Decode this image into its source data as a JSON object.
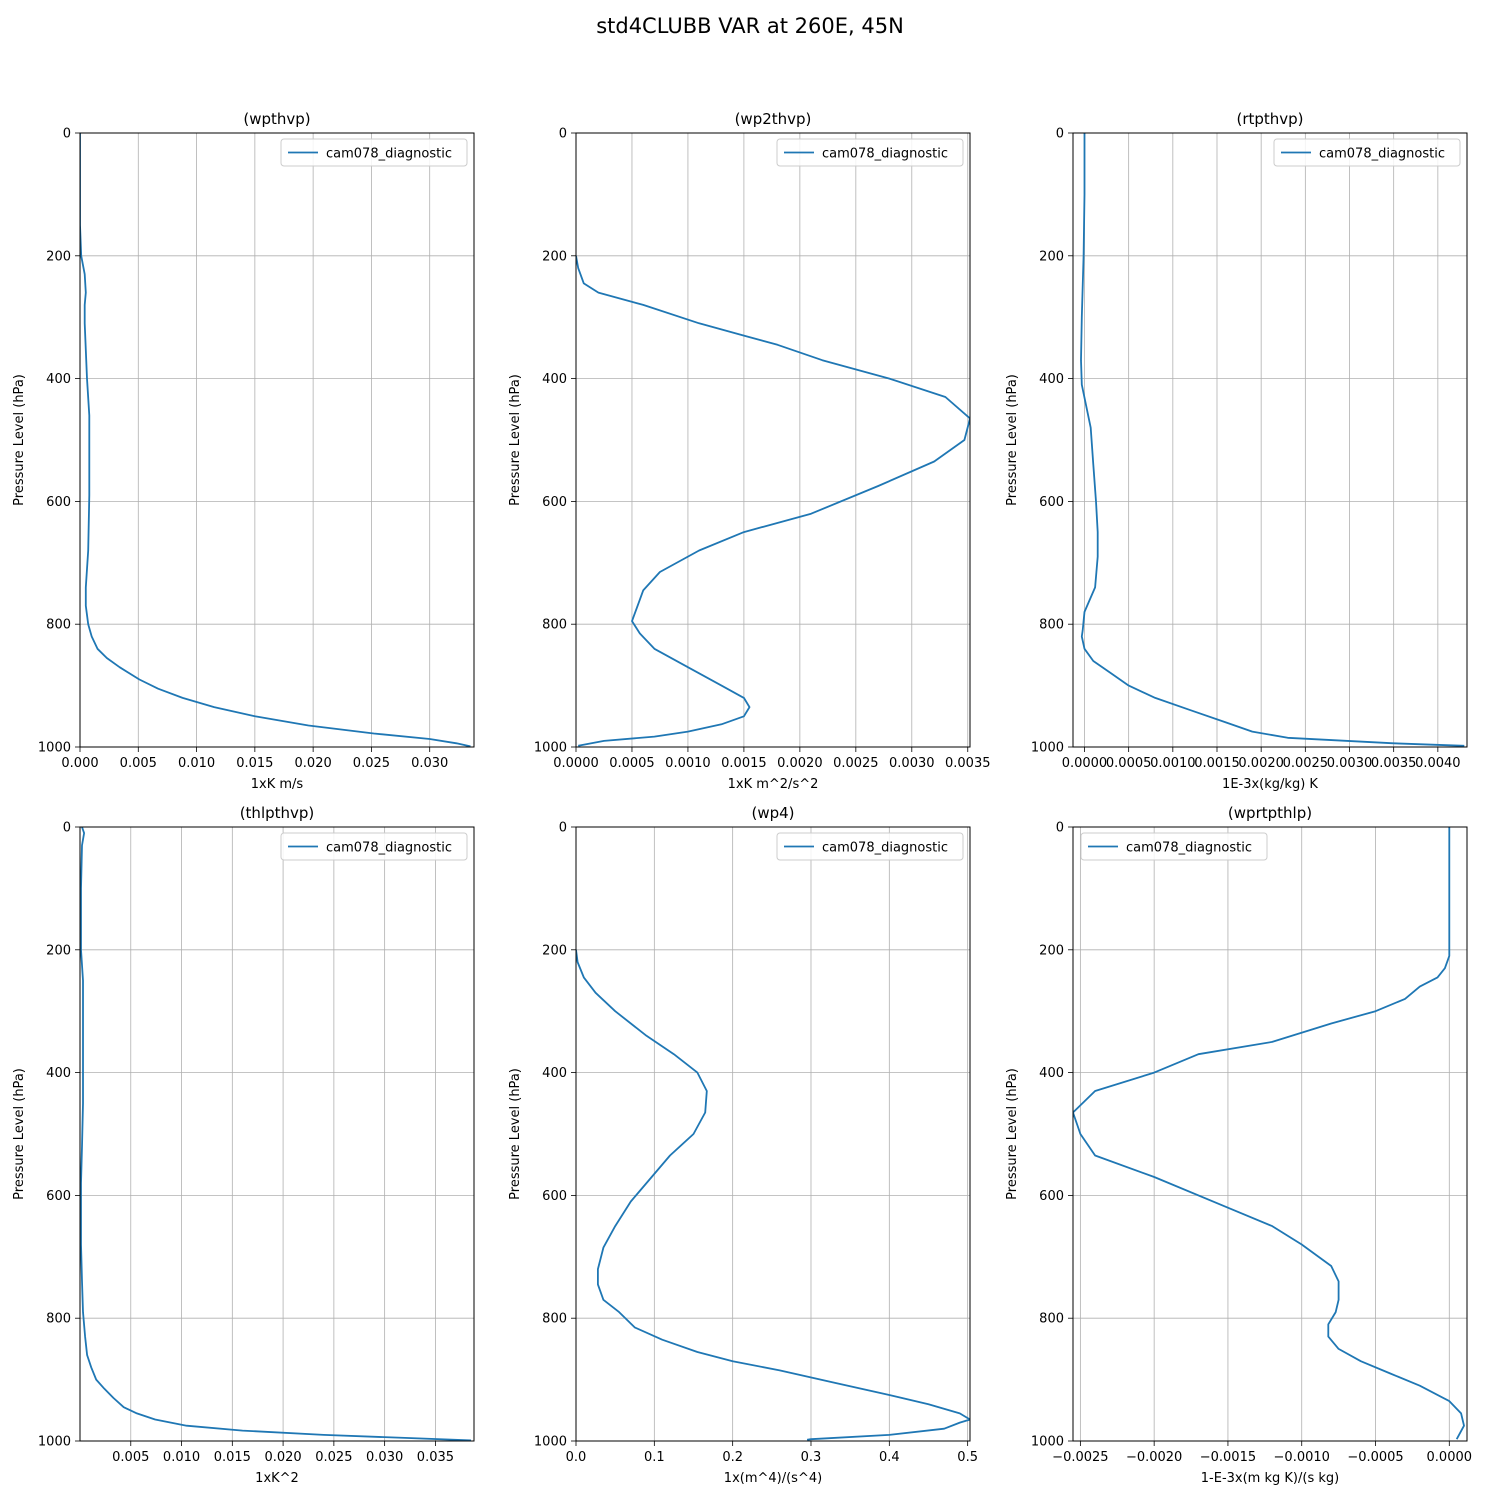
{
  "figure": {
    "suptitle": "std4CLUBB VAR at 260E, 45N"
  },
  "chart_data": [
    {
      "type": "line",
      "title": "(wpthvp)",
      "xlabel": "1xK m/s",
      "ylabel": "Pressure Level (hPa)",
      "xlim": [
        0,
        0.0338
      ],
      "ylim": [
        1000,
        0
      ],
      "xticks": [
        "0.000",
        "0.005",
        "0.010",
        "0.015",
        "0.020",
        "0.025",
        "0.030"
      ],
      "yticks": [
        "0",
        "200",
        "400",
        "600",
        "800",
        "1000"
      ],
      "legend_position": "upper-right",
      "grid": true,
      "series": [
        {
          "name": "cam078_diagnostic",
          "x": [
            0,
            0,
            0.0001,
            0.0004,
            0.0005,
            0.0004,
            0.0004,
            0.0006,
            0.0008,
            0.0008,
            0.0008,
            0.0007,
            0.0005,
            0.0005,
            0.0007,
            0.001,
            0.0015,
            0.0023,
            0.0034,
            0.0051,
            0.0067,
            0.0088,
            0.0115,
            0.015,
            0.0196,
            0.0252,
            0.03,
            0.0323,
            0.0335
          ],
          "y": [
            0,
            150,
            200,
            230,
            260,
            280,
            310,
            400,
            460,
            520,
            590,
            680,
            740,
            770,
            800,
            820,
            840,
            855,
            870,
            890,
            905,
            920,
            935,
            950,
            965,
            978,
            987,
            994,
            999
          ]
        }
      ]
    },
    {
      "type": "line",
      "title": "(wp2thvp)",
      "xlabel": "1xK m^2/s^2",
      "ylabel": "Pressure Level (hPa)",
      "xlim": [
        0,
        0.00352
      ],
      "ylim": [
        1000,
        0
      ],
      "xticks": [
        "0.0000",
        "0.0005",
        "0.0010",
        "0.0015",
        "0.0020",
        "0.0025",
        "0.0030",
        "0.0035"
      ],
      "yticks": [
        "0",
        "200",
        "400",
        "600",
        "800",
        "1000"
      ],
      "legend_position": "upper-right",
      "grid": true,
      "series": [
        {
          "name": "cam078_diagnostic",
          "x": [
            0,
            2e-05,
            7e-05,
            0.0002,
            0.0006,
            0.0011,
            0.0015,
            0.0018,
            0.0022,
            0.0028,
            0.0033,
            0.00352,
            0.00347,
            0.0032,
            0.0027,
            0.0021,
            0.0015,
            0.0011,
            0.00075,
            0.0006,
            0.00055,
            0.0005,
            0.00057,
            0.0007,
            0.001,
            0.0013,
            0.0015,
            0.00155,
            0.0015,
            0.0013,
            0.001,
            0.0007,
            0.00025,
            2e-05
          ],
          "y": [
            200,
            220,
            245,
            260,
            280,
            310,
            330,
            345,
            370,
            400,
            430,
            465,
            500,
            535,
            575,
            620,
            650,
            680,
            715,
            745,
            770,
            795,
            815,
            840,
            870,
            900,
            920,
            935,
            950,
            963,
            975,
            983,
            990,
            998
          ]
        }
      ]
    },
    {
      "type": "line",
      "title": "(rtpthvp)",
      "xlabel": "1E-3x(kg/kg) K",
      "ylabel": "Pressure Level (hPa)",
      "xlim": [
        -0.00013,
        0.00433
      ],
      "ylim": [
        1000,
        0
      ],
      "xticks": [
        "0.0000",
        "0.0005",
        "0.0010",
        "0.0015",
        "0.0020",
        "0.0025",
        "0.0030",
        "0.0035",
        "0.0040"
      ],
      "yticks": [
        "0",
        "200",
        "400",
        "600",
        "800",
        "1000"
      ],
      "legend_position": "upper-right",
      "grid": true,
      "series": [
        {
          "name": "cam078_diagnostic",
          "x": [
            0,
            0,
            -1e-05,
            -3e-05,
            -4e-05,
            -3e-05,
            7e-05,
            0.0001,
            0.00013,
            0.00015,
            0.00015,
            0.00012,
            0,
            -2e-05,
            -3e-05,
            0,
            0.0001,
            0.0003,
            0.0005,
            0.0008,
            0.0012,
            0.0016,
            0.0019,
            0.0023,
            0.0035,
            0.0043
          ],
          "y": [
            0,
            100,
            200,
            300,
            370,
            410,
            480,
            540,
            600,
            650,
            690,
            740,
            780,
            810,
            820,
            840,
            860,
            880,
            900,
            920,
            940,
            960,
            975,
            985,
            994,
            998
          ]
        }
      ]
    },
    {
      "type": "line",
      "title": "(thlpthvp)",
      "xlabel": "1xK^2",
      "ylabel": "Pressure Level (hPa)",
      "xlim": [
        0,
        0.0388
      ],
      "ylim": [
        1000,
        0
      ],
      "xticks": [
        "0.005",
        "0.010",
        "0.015",
        "0.020",
        "0.025",
        "0.030",
        "0.035"
      ],
      "yticks": [
        "0",
        "200",
        "400",
        "600",
        "800",
        "1000"
      ],
      "legend_position": "upper-right",
      "grid": true,
      "series": [
        {
          "name": "cam078_diagnostic",
          "x": [
            0.0002,
            0.0004,
            0.0002,
            0.0001,
            0.0001,
            0.0003,
            0.0003,
            0.0003,
            0.0003,
            0.0002,
            0.0001,
            0.0001,
            0.0001,
            0.0002,
            0.0003,
            0.0005,
            0.0007,
            0.0011,
            0.0016,
            0.0024,
            0.0033,
            0.0043,
            0.0056,
            0.0074,
            0.0105,
            0.016,
            0.024,
            0.032,
            0.0385
          ],
          "y": [
            0,
            10,
            30,
            100,
            200,
            250,
            300,
            380,
            450,
            520,
            580,
            620,
            680,
            740,
            790,
            830,
            860,
            880,
            900,
            915,
            930,
            945,
            955,
            965,
            975,
            983,
            990,
            995,
            999
          ]
        }
      ]
    },
    {
      "type": "line",
      "title": "(wp4)",
      "xlabel": "1x(m^4)/(s^4)",
      "ylabel": "Pressure Level (hPa)",
      "xlim": [
        0,
        0.503
      ],
      "ylim": [
        1000,
        0
      ],
      "xticks": [
        "0.0",
        "0.1",
        "0.2",
        "0.3",
        "0.4",
        "0.5"
      ],
      "yticks": [
        "0",
        "200",
        "400",
        "600",
        "800",
        "1000"
      ],
      "legend_position": "upper-right",
      "grid": true,
      "series": [
        {
          "name": "cam078_diagnostic",
          "x": [
            0,
            0.002,
            0.01,
            0.025,
            0.05,
            0.09,
            0.125,
            0.155,
            0.167,
            0.165,
            0.15,
            0.12,
            0.07,
            0.05,
            0.035,
            0.028,
            0.028,
            0.035,
            0.055,
            0.075,
            0.11,
            0.155,
            0.2,
            0.26,
            0.33,
            0.4,
            0.45,
            0.49,
            0.503,
            0.49,
            0.47,
            0.4,
            0.3,
            0.295
          ],
          "y": [
            200,
            220,
            245,
            270,
            300,
            340,
            370,
            400,
            430,
            465,
            500,
            535,
            610,
            650,
            685,
            720,
            745,
            770,
            790,
            815,
            835,
            855,
            870,
            885,
            905,
            925,
            940,
            955,
            965,
            970,
            980,
            990,
            997,
            998
          ]
        }
      ]
    },
    {
      "type": "line",
      "title": "(wprtpthlp)",
      "xlabel": "1-E-3x(m kg K)/(s kg)",
      "ylabel": "Pressure Level (hPa)",
      "xlim": [
        -0.00255,
        0.00012
      ],
      "ylim": [
        1000,
        0
      ],
      "xticks": [
        "−0.0025",
        "−0.0020",
        "−0.0015",
        "−0.0010",
        "−0.0005",
        "0.0000"
      ],
      "yticks": [
        "0",
        "200",
        "400",
        "600",
        "800",
        "1000"
      ],
      "legend_position": "upper-left",
      "grid": true,
      "series": [
        {
          "name": "cam078_diagnostic",
          "x": [
            0,
            0,
            -3e-05,
            -8e-05,
            -0.0002,
            -0.0003,
            -0.0005,
            -0.0008,
            -0.0012,
            -0.0017,
            -0.002,
            -0.0024,
            -0.00255,
            -0.0025,
            -0.0024,
            -0.002,
            -0.0015,
            -0.0012,
            -0.001,
            -0.0008,
            -0.00075,
            -0.00075,
            -0.00077,
            -0.00082,
            -0.00082,
            -0.00075,
            -0.0006,
            -0.0004,
            -0.0002,
            0,
            8e-05,
            0.0001,
            5e-05
          ],
          "y": [
            0,
            210,
            230,
            245,
            260,
            280,
            300,
            320,
            350,
            370,
            400,
            430,
            465,
            500,
            535,
            570,
            620,
            650,
            680,
            715,
            740,
            770,
            790,
            810,
            830,
            850,
            870,
            890,
            910,
            935,
            955,
            975,
            997
          ]
        }
      ]
    }
  ]
}
